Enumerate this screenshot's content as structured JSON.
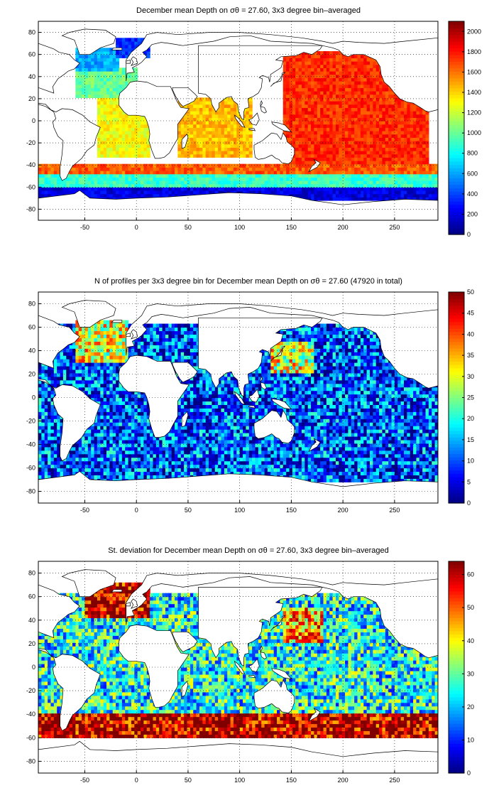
{
  "chart_data": [
    {
      "type": "heatmap",
      "title": "December mean Depth on σθ = 27.60, 3x3 degree bin–averaged",
      "x_ticks": [
        -50,
        0,
        50,
        100,
        150,
        200,
        250
      ],
      "y_ticks": [
        80,
        60,
        40,
        20,
        0,
        -20,
        -40,
        -60,
        -80
      ],
      "xlim": [
        -95,
        292
      ],
      "ylim": [
        -90,
        90
      ],
      "colorbar": {
        "min": 0,
        "max": 2100,
        "ticks": [
          0,
          200,
          400,
          600,
          800,
          1000,
          1200,
          1400,
          1600,
          1800,
          2000
        ]
      },
      "colormap": "jet",
      "grid": true,
      "regions": [
        {
          "lon": [
            -20,
            10
          ],
          "lat": [
            55,
            72
          ],
          "value": 350
        },
        {
          "lon": [
            -60,
            -20
          ],
          "lat": [
            45,
            65
          ],
          "value": 600
        },
        {
          "lon": [
            -60,
            0
          ],
          "lat": [
            20,
            45
          ],
          "value": 1000
        },
        {
          "lon": [
            -40,
            10
          ],
          "lat": [
            -35,
            20
          ],
          "value": 1300
        },
        {
          "lon": [
            40,
            110
          ],
          "lat": [
            -35,
            20
          ],
          "value": 1450
        },
        {
          "lon": [
            140,
            280
          ],
          "lat": [
            -40,
            60
          ],
          "value": 1750
        },
        {
          "lon": [
            -95,
            290
          ],
          "lat": [
            -50,
            -40
          ],
          "value": 1650
        },
        {
          "lon": [
            -95,
            290
          ],
          "lat": [
            -60,
            -50
          ],
          "value": 900
        },
        {
          "lon": [
            -95,
            290
          ],
          "lat": [
            -72,
            -60
          ],
          "value": 200
        }
      ]
    },
    {
      "type": "heatmap",
      "title": "N of profiles per 3x3 degree bin for December mean Depth on σθ = 27.60 (47920 in total)",
      "total_profiles": 47920,
      "x_ticks": [
        -50,
        0,
        50,
        100,
        150,
        200,
        250
      ],
      "y_ticks": [
        80,
        60,
        40,
        20,
        0,
        -20,
        -40,
        -60,
        -80
      ],
      "xlim": [
        -95,
        292
      ],
      "ylim": [
        -90,
        90
      ],
      "colorbar": {
        "min": 0,
        "max": 50,
        "ticks": [
          0,
          5,
          10,
          15,
          20,
          25,
          30,
          35,
          40,
          45,
          50
        ]
      },
      "colormap": "jet",
      "grid": true,
      "regions": [
        {
          "lon": [
            -60,
            -10
          ],
          "lat": [
            30,
            65
          ],
          "value": 30
        },
        {
          "lon": [
            130,
            170
          ],
          "lat": [
            20,
            45
          ],
          "value": 30
        },
        {
          "lon": [
            -95,
            290
          ],
          "lat": [
            -72,
            60
          ],
          "value": 10
        }
      ]
    },
    {
      "type": "heatmap",
      "title": "St. deviation for December mean Depth on σθ = 27.60, 3x3 degree bin–averaged",
      "x_ticks": [
        -50,
        0,
        50,
        100,
        150,
        200,
        250
      ],
      "y_ticks": [
        80,
        60,
        40,
        20,
        0,
        -20,
        -40,
        -60,
        -80
      ],
      "xlim": [
        -95,
        292
      ],
      "ylim": [
        -90,
        90
      ],
      "colorbar": {
        "min": 0,
        "max": 64,
        "ticks": [
          0,
          10,
          20,
          30,
          40,
          50,
          60
        ]
      },
      "colormap": "jet",
      "grid": true,
      "regions": [
        {
          "lon": [
            -50,
            10
          ],
          "lat": [
            40,
            70
          ],
          "value": 60
        },
        {
          "lon": [
            -95,
            290
          ],
          "lat": [
            -62,
            -40
          ],
          "value": 60
        },
        {
          "lon": [
            140,
            180
          ],
          "lat": [
            20,
            50
          ],
          "value": 45
        },
        {
          "lon": [
            -95,
            290
          ],
          "lat": [
            -40,
            60
          ],
          "value": 25
        }
      ]
    }
  ],
  "colors": {
    "land": "#ffffff",
    "coast": "#000000",
    "frame": "#000000"
  }
}
